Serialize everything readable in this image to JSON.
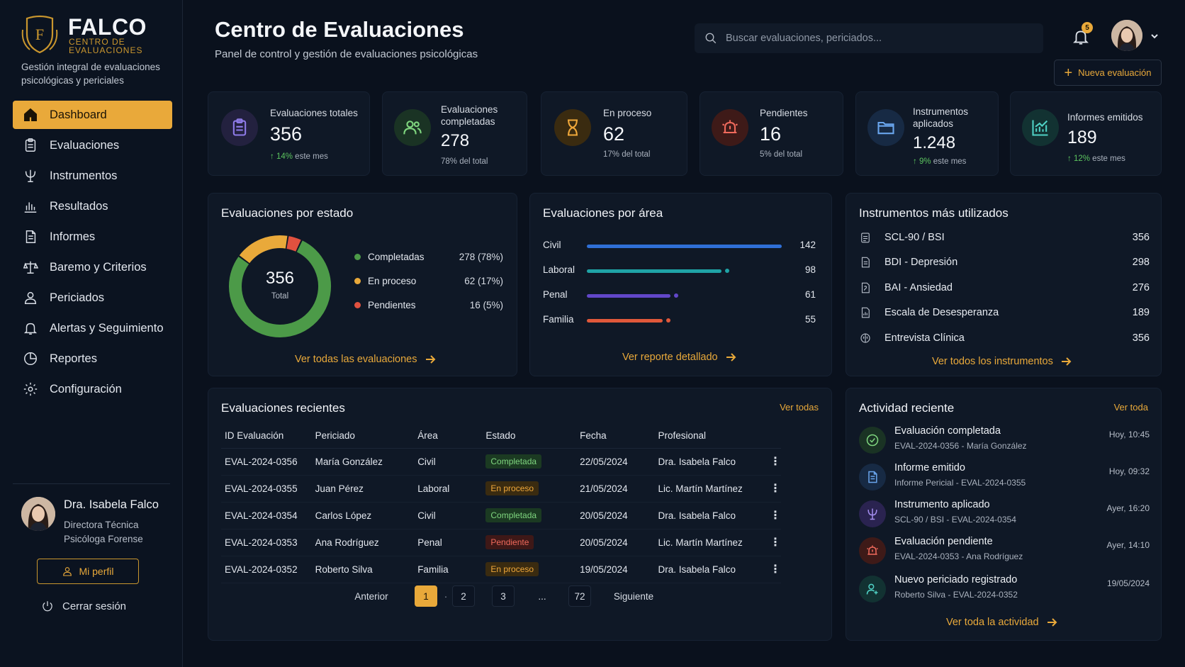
{
  "brand": {
    "name": "FALCO",
    "subtitle": "CENTRO DE EVALUACIONES",
    "tagline": "Gestión integral de evaluaciones psicológicas y periciales",
    "accent": "#e9a93a"
  },
  "nav": [
    {
      "label": "Dashboard",
      "icon": "home-icon",
      "active": true
    },
    {
      "label": "Evaluaciones",
      "icon": "clipboard-icon"
    },
    {
      "label": "Instrumentos",
      "icon": "psi-icon"
    },
    {
      "label": "Resultados",
      "icon": "bar-chart-icon"
    },
    {
      "label": "Informes",
      "icon": "document-icon"
    },
    {
      "label": "Baremo y Criterios",
      "icon": "scale-icon"
    },
    {
      "label": "Periciados",
      "icon": "user-icon"
    },
    {
      "label": "Alertas y Seguimiento",
      "icon": "bell-icon"
    },
    {
      "label": "Reportes",
      "icon": "pie-chart-icon"
    },
    {
      "label": "Configuración",
      "icon": "gear-icon"
    }
  ],
  "profile": {
    "name": "Dra. Isabela Falco",
    "role1": "Directora Técnica",
    "role2": "Psicóloga Forense",
    "my_profile": "Mi perfil",
    "logout": "Cerrar sesión"
  },
  "header": {
    "title": "Centro de Evaluaciones",
    "subtitle": "Panel de control y gestión de evaluaciones psicológicas",
    "search_placeholder": "Buscar evaluaciones, periciados...",
    "notifications": "5",
    "new_eval": "Nueva evaluación"
  },
  "stats": [
    {
      "label": "Evaluaciones totales",
      "value": "356",
      "trend": "14%",
      "sub": " este mes",
      "icon": "clipboard-icon",
      "color": "#8e7be8",
      "bg": "#23213f"
    },
    {
      "label": "Evaluaciones completadas",
      "value": "278",
      "trend": "",
      "sub": "78% del total",
      "icon": "users-icon",
      "color": "#7fd67f",
      "bg": "#1a3324"
    },
    {
      "label": "En proceso",
      "value": "62",
      "trend": "",
      "sub": "17% del total",
      "icon": "hourglass-icon",
      "color": "#f0a83a",
      "bg": "#3a2b10"
    },
    {
      "label": "Pendientes",
      "value": "16",
      "trend": "",
      "sub": "5% del total",
      "icon": "alarm-icon",
      "color": "#f06a5c",
      "bg": "#3e1a18"
    },
    {
      "label": "Instrumentos aplicados",
      "value": "1.248",
      "trend": "9%",
      "sub": " este mes",
      "icon": "folder-icon",
      "color": "#6aa6ee",
      "bg": "#172a44"
    },
    {
      "label": "Informes emitidos",
      "value": "189",
      "trend": "12%",
      "sub": " este mes",
      "icon": "growth-chart-icon",
      "color": "#4fd1c5",
      "bg": "#123232"
    }
  ],
  "by_status": {
    "title": "Evaluaciones por estado",
    "total": "356",
    "total_label": "Total",
    "items": [
      {
        "label": "Completadas",
        "value": 278,
        "display": "278 (78%)",
        "color": "#4c9a48"
      },
      {
        "label": "En proceso",
        "value": 62,
        "display": "62 (17%)",
        "color": "#e9a93a"
      },
      {
        "label": "Pendientes",
        "value": 16,
        "display": "16 (5%)",
        "color": "#e0513f"
      }
    ],
    "link": "Ver todas las evaluaciones"
  },
  "by_area": {
    "title": "Evaluaciones por área",
    "max": 142,
    "items": [
      {
        "label": "Civil",
        "value": 142,
        "color": "#2f6fd6"
      },
      {
        "label": "Laboral",
        "value": 98,
        "color": "#1fa3a6"
      },
      {
        "label": "Penal",
        "value": 61,
        "color": "#6247c9"
      },
      {
        "label": "Familia",
        "value": 55,
        "color": "#e0583a"
      }
    ],
    "link": "Ver reporte detallado"
  },
  "chart_data": [
    {
      "type": "pie",
      "categories": [
        "Completadas",
        "En proceso",
        "Pendientes"
      ],
      "values": [
        278,
        62,
        16
      ],
      "title": "Evaluaciones por estado"
    },
    {
      "type": "bar",
      "categories": [
        "Civil",
        "Laboral",
        "Penal",
        "Familia"
      ],
      "values": [
        142,
        98,
        61,
        55
      ],
      "title": "Evaluaciones por área"
    }
  ],
  "instruments": {
    "title": "Instrumentos más utilizados",
    "items": [
      {
        "label": "SCL-90 / BSI",
        "value": "356"
      },
      {
        "label": "BDI - Depresión",
        "value": "298"
      },
      {
        "label": "BAI - Ansiedad",
        "value": "276"
      },
      {
        "label": "Escala de Desesperanza",
        "value": "189"
      },
      {
        "label": "Entrevista Clínica",
        "value": "356"
      }
    ],
    "link": "Ver todos los instrumentos"
  },
  "recent": {
    "title": "Evaluaciones recientes",
    "see_all": "Ver todas",
    "columns": [
      "ID Evaluación",
      "Periciado",
      "Área",
      "Estado",
      "Fecha",
      "Profesional"
    ],
    "rows": [
      {
        "id": "EVAL-2024-0356",
        "name": "María González",
        "area": "Civil",
        "status": "Completada",
        "kind": "completada",
        "date": "22/05/2024",
        "pro": "Dra. Isabela Falco"
      },
      {
        "id": "EVAL-2024-0355",
        "name": "Juan Pérez",
        "area": "Laboral",
        "status": "En proceso",
        "kind": "proceso",
        "date": "21/05/2024",
        "pro": "Lic. Martín Martínez"
      },
      {
        "id": "EVAL-2024-0354",
        "name": "Carlos López",
        "area": "Civil",
        "status": "Completada",
        "kind": "completada",
        "date": "20/05/2024",
        "pro": "Dra. Isabela Falco"
      },
      {
        "id": "EVAL-2024-0353",
        "name": "Ana Rodríguez",
        "area": "Penal",
        "status": "Pendiente",
        "kind": "pendiente",
        "date": "20/05/2024",
        "pro": "Lic. Martín Martínez"
      },
      {
        "id": "EVAL-2024-0352",
        "name": "Roberto Silva",
        "area": "Familia",
        "status": "En proceso",
        "kind": "proceso",
        "date": "19/05/2024",
        "pro": "Dra. Isabela Falco"
      }
    ],
    "pager": {
      "prev": "Anterior",
      "pages": [
        "1",
        "2",
        "3"
      ],
      "ellipsis": "...",
      "last": "72",
      "next": "Siguiente"
    }
  },
  "activity": {
    "title": "Actividad reciente",
    "see_all": "Ver toda",
    "items": [
      {
        "title": "Evaluación completada",
        "sub": "EVAL-2024-0356 - María González",
        "time": "Hoy, 10:45",
        "icon": "check-icon",
        "color": "#7fd67f",
        "bg": "#1a3324"
      },
      {
        "title": "Informe emitido",
        "sub": "Informe Pericial - EVAL-2024-0355",
        "time": "Hoy, 09:32",
        "icon": "document-icon",
        "color": "#6aa6ee",
        "bg": "#172a44"
      },
      {
        "title": "Instrumento aplicado",
        "sub": "SCL-90 / BSI - EVAL-2024-0354",
        "time": "Ayer, 16:20",
        "icon": "psi-icon",
        "color": "#a58ef0",
        "bg": "#2a2350"
      },
      {
        "title": "Evaluación pendiente",
        "sub": "EVAL-2024-0353 - Ana Rodríguez",
        "time": "Ayer, 14:10",
        "icon": "alarm-icon",
        "color": "#f06a5c",
        "bg": "#3e1a18"
      },
      {
        "title": "Nuevo periciado registrado",
        "sub": "Roberto Silva - EVAL-2024-0352",
        "time": "19/05/2024",
        "icon": "user-add-icon",
        "color": "#4fd1c5",
        "bg": "#123232"
      }
    ],
    "link": "Ver toda la actividad"
  }
}
